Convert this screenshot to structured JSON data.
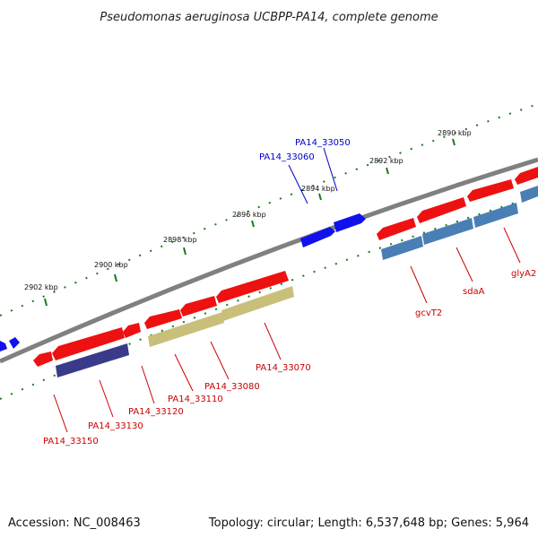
{
  "title": "Pseudomonas aeruginosa UCBPP-PA14, complete genome",
  "footer": {
    "accession": "Accession: NC_008463",
    "summary": "Topology: circular; Length: 6,537,648 bp; Genes: 5,964"
  },
  "colors": {
    "backbone": "#808080",
    "tick": "#1a7a1a",
    "plus_label": "#0000cc",
    "minus_label": "#cc0000",
    "gene_red": "#ee1111",
    "gene_blue": "#1111ee",
    "cog_steelblue": "#4a7fb5",
    "cog_khaki": "#c8c07a",
    "cog_navy": "#3a3a8a"
  },
  "kbp_labels": [
    "2890 kbp",
    "2892 kbp",
    "2894 kbp",
    "2896 kbp",
    "2898 kbp",
    "2900 kbp",
    "2902 kbp"
  ],
  "plus_genes": [
    {
      "label": "PA14_33050"
    },
    {
      "label": "PA14_33060"
    }
  ],
  "minus_genes": [
    {
      "label": "glyA2"
    },
    {
      "label": "sdaA"
    },
    {
      "label": "gcvT2"
    },
    {
      "label": "PA14_33070"
    },
    {
      "label": "PA14_33080"
    },
    {
      "label": "PA14_33110"
    },
    {
      "label": "PA14_33120"
    },
    {
      "label": "PA14_33130"
    },
    {
      "label": "PA14_33150"
    }
  ]
}
